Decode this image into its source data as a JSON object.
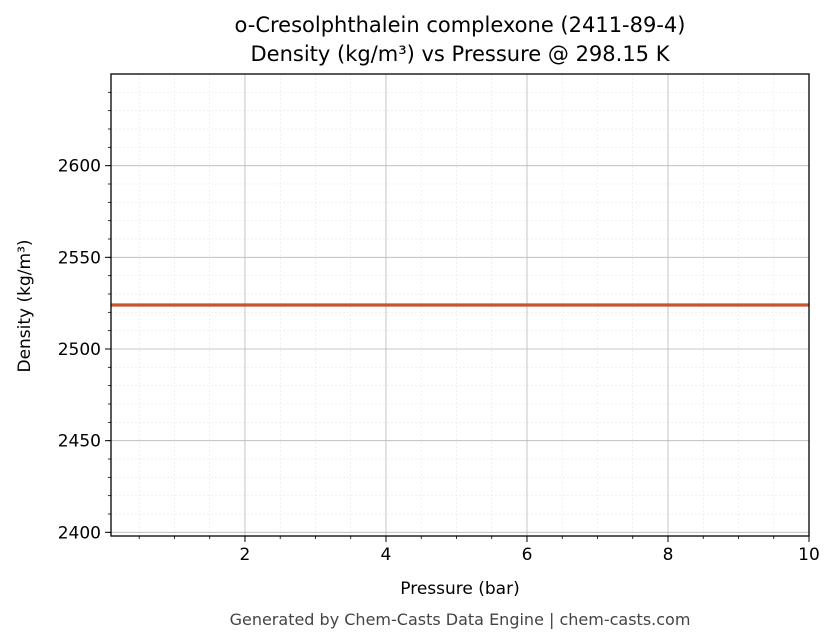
{
  "chart_data": {
    "type": "line",
    "title": "o-Cresolphthalein complexone (2411-89-4)",
    "subtitle": "Density (kg/m³) vs Pressure @ 298.15 K",
    "xlabel": "Pressure (bar)",
    "ylabel": "Density (kg/m³)",
    "xlim": [
      0.1,
      10
    ],
    "ylim": [
      2398,
      2650
    ],
    "x_ticks": [
      2,
      4,
      6,
      8,
      10
    ],
    "y_ticks": [
      2400,
      2450,
      2500,
      2550,
      2600
    ],
    "grid": true,
    "series": [
      {
        "color": "#c8552b",
        "x": [
          0.1,
          10
        ],
        "y": [
          2524,
          2524
        ]
      }
    ]
  },
  "footer": "Generated by Chem-Casts Data Engine | chem-casts.com"
}
